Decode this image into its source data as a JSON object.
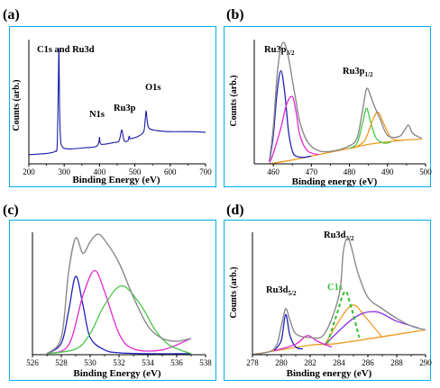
{
  "colors": {
    "frame": "#00aeef",
    "axis": "#000000",
    "survey": "#1a1aa8",
    "envelope": "#8a8a8a",
    "blue": "#2222bb",
    "magenta": "#e22ad0",
    "green": "#46c846",
    "orange": "#ee9a1e",
    "purple": "#8a2be2",
    "green_dashed": "#2fbf2f"
  },
  "chart_data": [
    {
      "id": "a",
      "type": "line",
      "panel_label": "(a)",
      "xlabel": "Binding Energy (eV)",
      "ylabel": "Counts (arb.)",
      "xlim": [
        200,
        700
      ],
      "xticks": [
        "200",
        "300",
        "400",
        "500",
        "600",
        "700"
      ],
      "yticks": false,
      "annotations": [
        "C1s and Ru3d",
        "N1s",
        "Ru3p",
        "O1s"
      ],
      "series": [
        {
          "role": "survey",
          "color_key": "survey",
          "x": [
            200,
            230,
            260,
            275,
            280,
            283,
            285,
            287,
            290,
            295,
            300,
            320,
            360,
            390,
            398,
            400,
            402,
            410,
            440,
            455,
            462,
            465,
            470,
            480,
            484,
            486,
            490,
            510,
            525,
            529,
            532,
            535,
            540,
            560,
            600,
            650,
            700
          ],
          "y": [
            8,
            8.5,
            9.5,
            11,
            16,
            60,
            100,
            48,
            20,
            15,
            13.5,
            13,
            14,
            15,
            19,
            23,
            18,
            17,
            18.5,
            20,
            29,
            27,
            20,
            20,
            24,
            22,
            22,
            24,
            28,
            38,
            46,
            37,
            31,
            29,
            28,
            28,
            27.5
          ]
        }
      ]
    },
    {
      "id": "b",
      "type": "line",
      "panel_label": "(b)",
      "xlabel": "Binding energy (eV)",
      "ylabel": "Counts (arb.)",
      "xlim": [
        455,
        500
      ],
      "xticks": [
        "460",
        "470",
        "480",
        "490",
        "500"
      ],
      "yticks": false,
      "annotations": [
        {
          "main": "Ru3p",
          "sub": "3/2"
        },
        {
          "main": "Ru3p",
          "sub": "1/2"
        }
      ],
      "series": [
        {
          "role": "background",
          "color_key": "orange",
          "x": [
            459,
            465,
            470,
            475,
            480,
            485,
            490,
            495,
            499
          ],
          "y": [
            0,
            3,
            6,
            9,
            12,
            15,
            17,
            18.5,
            19
          ]
        },
        {
          "role": "component",
          "color_key": "blue",
          "x": [
            459,
            460,
            461,
            462,
            463,
            464,
            465,
            466,
            468,
            470
          ],
          "y": [
            2,
            22,
            55,
            72,
            55,
            25,
            10,
            6,
            5,
            6
          ]
        },
        {
          "role": "component",
          "color_key": "magenta",
          "x": [
            459,
            460,
            462,
            463.5,
            465,
            466,
            467,
            469,
            472
          ],
          "y": [
            1,
            8,
            28,
            46,
            52,
            40,
            22,
            10,
            7
          ]
        },
        {
          "role": "component",
          "color_key": "green",
          "x": [
            480,
            482,
            483.5,
            484.5,
            485.5,
            487,
            489,
            491
          ],
          "y": [
            12,
            16,
            32,
            43,
            33,
            20,
            16,
            17
          ]
        },
        {
          "role": "component",
          "color_key": "orange",
          "x": [
            481,
            484,
            486,
            487.5,
            489,
            491,
            494
          ],
          "y": [
            12,
            18,
            33,
            40,
            31,
            20,
            18
          ]
        },
        {
          "role": "envelope",
          "color_key": "envelope",
          "x": [
            459,
            460,
            461,
            462,
            463,
            464,
            465,
            466,
            467,
            469,
            472,
            476,
            480,
            482,
            483.5,
            484.5,
            485.5,
            486.5,
            488,
            490,
            493,
            494.5,
            495.5,
            496.5,
            498,
            499
          ],
          "y": [
            3,
            28,
            68,
            90,
            93,
            82,
            65,
            48,
            32,
            17,
            10,
            10,
            14,
            20,
            42,
            58,
            53,
            45,
            35,
            22,
            21,
            26,
            30,
            24,
            21,
            20
          ]
        }
      ]
    },
    {
      "id": "c",
      "type": "line",
      "panel_label": "(c)",
      "xlabel": "Binding Energy (eV)",
      "ylabel": "",
      "xlim": [
        526,
        538
      ],
      "xticks": [
        "526",
        "528",
        "530",
        "532",
        "534",
        "536",
        "538"
      ],
      "yticks": false,
      "annotations": [],
      "series": [
        {
          "role": "component",
          "color_key": "blue",
          "x": [
            527,
            528,
            528.5,
            529,
            529.5,
            530,
            531,
            532,
            534,
            537
          ],
          "y": [
            1,
            12,
            45,
            82,
            52,
            18,
            5,
            2,
            1,
            1
          ]
        },
        {
          "role": "component",
          "color_key": "magenta",
          "x": [
            527,
            528.5,
            529.5,
            530.3,
            531,
            532,
            533,
            535,
            537
          ],
          "y": [
            1,
            10,
            62,
            88,
            66,
            22,
            6,
            5,
            17
          ]
        },
        {
          "role": "component",
          "color_key": "green",
          "x": [
            527,
            529,
            530,
            531,
            532.2,
            533.5,
            534.5,
            535.5,
            537
          ],
          "y": [
            1,
            6,
            22,
            52,
            72,
            52,
            26,
            10,
            1
          ]
        },
        {
          "role": "envelope",
          "color_key": "envelope",
          "x": [
            527,
            528,
            528.5,
            529,
            529.5,
            530,
            530.5,
            531,
            532,
            533,
            534,
            535,
            536,
            537
          ],
          "y": [
            1,
            18,
            86,
            122,
            106,
            118,
            126,
            120,
            96,
            60,
            30,
            17,
            14,
            17
          ]
        }
      ]
    },
    {
      "id": "d",
      "type": "line",
      "panel_label": "(d)",
      "xlabel": "Binding energy (eV)",
      "ylabel": "Counts (arb.)",
      "xlim": [
        278,
        290
      ],
      "xticks": [
        "278",
        "280",
        "282",
        "284",
        "286",
        "288",
        "290"
      ],
      "yticks": false,
      "annotations": [
        {
          "main": "Ru3d",
          "sub": "3/2"
        },
        {
          "main": "C1s",
          "sub": ""
        },
        {
          "main": "Ru3d",
          "sub": "5/2"
        }
      ],
      "series": [
        {
          "role": "component",
          "color_key": "orange",
          "x": [
            278,
            282,
            284,
            290
          ],
          "y": [
            0,
            10,
            12,
            26
          ]
        },
        {
          "role": "component",
          "color_key": "blue",
          "x": [
            279.5,
            280,
            280.3,
            280.6,
            281,
            281.5
          ],
          "y": [
            4,
            15,
            42,
            20,
            8,
            6
          ]
        },
        {
          "role": "component",
          "color_key": "magenta",
          "x": [
            279.5,
            281,
            281.8,
            282.5,
            283.5
          ],
          "y": [
            4,
            11,
            20,
            14,
            8
          ]
        },
        {
          "role": "component",
          "color_key": "orange",
          "x": [
            283,
            284.2,
            285,
            285.8,
            287
          ],
          "y": [
            10,
            40,
            52,
            40,
            18
          ]
        },
        {
          "role": "component",
          "color_key": "purple",
          "x": [
            283,
            285,
            286.5,
            288,
            289.5
          ],
          "y": [
            10,
            38,
            45,
            35,
            28
          ]
        },
        {
          "role": "c1s",
          "color_key": "green_dashed",
          "dashed": true,
          "x": [
            283.2,
            283.8,
            284.4,
            284.8,
            285.4
          ],
          "y": [
            12,
            40,
            66,
            52,
            18
          ]
        },
        {
          "role": "envelope",
          "color_key": "envelope",
          "x": [
            278,
            279.5,
            280,
            280.3,
            280.6,
            281,
            282,
            283,
            284,
            284.3,
            284.6,
            284.9,
            285.3,
            286,
            287,
            288,
            289,
            290
          ],
          "y": [
            0,
            6,
            30,
            48,
            36,
            22,
            18,
            22,
            62,
            108,
            122,
            110,
            86,
            60,
            48,
            38,
            30,
            26
          ]
        }
      ]
    }
  ]
}
